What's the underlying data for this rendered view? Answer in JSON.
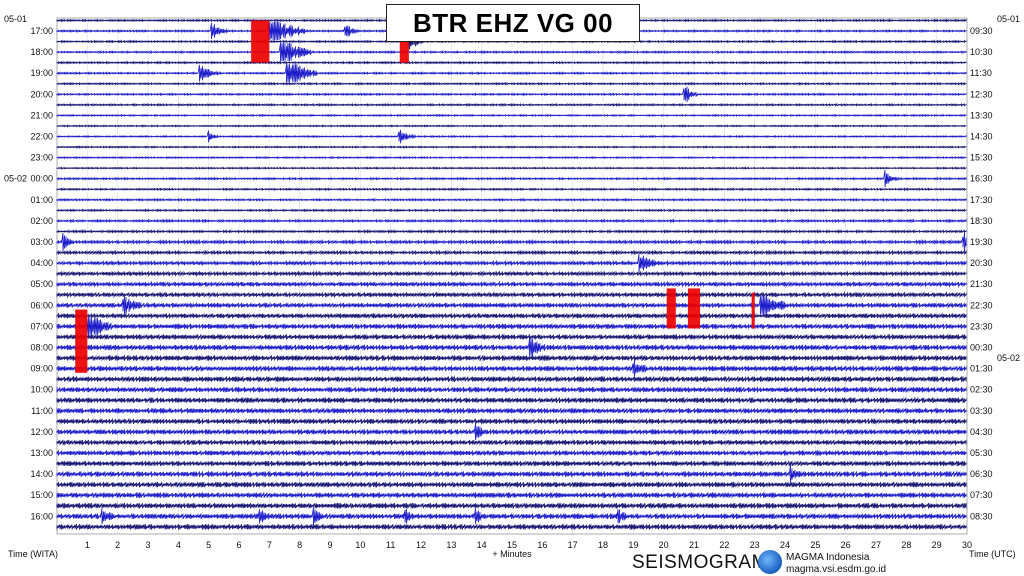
{
  "header": {
    "title": "BTR EHZ VG 00"
  },
  "footer": {
    "brand": "SEISMOGRAM",
    "org_name": "MAGMA Indonesia",
    "org_url": "magma.vsi.esdm.go.id"
  },
  "chart_data": {
    "type": "line",
    "title": "BTR EHZ VG 00",
    "xlabel": "+ Minutes",
    "ylabel_left": "Time (WITA)",
    "ylabel_right": "Time (UTC)",
    "xlim": [
      0,
      30
    ],
    "x_ticks": [
      1,
      2,
      3,
      4,
      5,
      6,
      7,
      8,
      9,
      10,
      11,
      12,
      13,
      14,
      15,
      16,
      17,
      18,
      19,
      20,
      21,
      22,
      23,
      24,
      25,
      26,
      27,
      28,
      29,
      30
    ],
    "lines_per_hour": 2,
    "date_labels_left": [
      {
        "text": "05-01",
        "at_hour_index": -0.5
      },
      {
        "text": "05-02",
        "at_hour_index": 7
      }
    ],
    "date_labels_right": [
      {
        "text": "05-01",
        "at_hour_index": -0.5
      },
      {
        "text": "05-02",
        "at_hour_index": 15.5
      }
    ],
    "left_hours": [
      "17:00",
      "18:00",
      "19:00",
      "20:00",
      "21:00",
      "22:00",
      "23:00",
      "00:00",
      "01:00",
      "02:00",
      "03:00",
      "04:00",
      "05:00",
      "06:00",
      "07:00",
      "08:00",
      "09:00",
      "10:00",
      "11:00",
      "12:00",
      "13:00",
      "14:00",
      "15:00",
      "16:00"
    ],
    "right_hours": [
      "09:30",
      "10:30",
      "11:30",
      "12:30",
      "13:30",
      "14:30",
      "15:30",
      "16:30",
      "17:30",
      "18:30",
      "19:30",
      "20:30",
      "21:30",
      "22:30",
      "23:30",
      "00:30",
      "01:30",
      "02:30",
      "03:30",
      "04:30",
      "05:30",
      "06:30",
      "07:30",
      "08:30"
    ],
    "trace_colors": [
      "#1818c8",
      "#101070"
    ],
    "clip_color": "#ee0000",
    "noise_level_by_hour": [
      0.25,
      0.25,
      0.25,
      0.25,
      0.2,
      0.2,
      0.2,
      0.25,
      0.25,
      0.3,
      0.4,
      0.5,
      0.6,
      0.65,
      0.7,
      0.75,
      0.75,
      0.75,
      0.7,
      0.7,
      0.7,
      0.75,
      0.75,
      0.75
    ],
    "events": [
      {
        "hour_index": 0.0,
        "minute": 5.1,
        "amplitude": 1.5,
        "duration": 0.5
      },
      {
        "hour_index": 0.0,
        "minute": 7.0,
        "amplitude": 3.0,
        "duration": 1.2
      },
      {
        "hour_index": 0.0,
        "minute": 9.5,
        "amplitude": 1.2,
        "duration": 0.4
      },
      {
        "hour_index": 0.5,
        "minute": 11.6,
        "amplitude": 1.5,
        "duration": 0.5
      },
      {
        "hour_index": 1.0,
        "minute": 7.4,
        "amplitude": 2.5,
        "duration": 1.0
      },
      {
        "hour_index": 2.0,
        "minute": 4.7,
        "amplitude": 1.5,
        "duration": 0.6
      },
      {
        "hour_index": 2.0,
        "minute": 7.6,
        "amplitude": 2.5,
        "duration": 1.0
      },
      {
        "hour_index": 3.0,
        "minute": 20.7,
        "amplitude": 1.5,
        "duration": 0.4
      },
      {
        "hour_index": 5.0,
        "minute": 5.0,
        "amplitude": 1.0,
        "duration": 0.3
      },
      {
        "hour_index": 5.0,
        "minute": 11.3,
        "amplitude": 1.0,
        "duration": 0.5
      },
      {
        "hour_index": 7.0,
        "minute": 27.3,
        "amplitude": 1.2,
        "duration": 0.4
      },
      {
        "hour_index": 10.0,
        "minute": 0.2,
        "amplitude": 1.5,
        "duration": 0.3
      },
      {
        "hour_index": 10.0,
        "minute": 29.9,
        "amplitude": 1.5,
        "duration": 0.2
      },
      {
        "hour_index": 11.0,
        "minute": 19.2,
        "amplitude": 1.5,
        "duration": 0.7
      },
      {
        "hour_index": 13.0,
        "minute": 2.2,
        "amplitude": 1.2,
        "duration": 0.6
      },
      {
        "hour_index": 13.0,
        "minute": 23.2,
        "amplitude": 2.5,
        "duration": 0.8
      },
      {
        "hour_index": 14.0,
        "minute": 1.0,
        "amplitude": 2.5,
        "duration": 0.8
      },
      {
        "hour_index": 15.0,
        "minute": 15.6,
        "amplitude": 1.5,
        "duration": 0.5
      },
      {
        "hour_index": 16.0,
        "minute": 19.0,
        "amplitude": 1.2,
        "duration": 0.5
      },
      {
        "hour_index": 19.0,
        "minute": 13.8,
        "amplitude": 1.2,
        "duration": 0.4
      },
      {
        "hour_index": 21.0,
        "minute": 24.2,
        "amplitude": 1.0,
        "duration": 0.4
      },
      {
        "hour_index": 23.0,
        "minute": 1.5,
        "amplitude": 1.0,
        "duration": 0.3
      },
      {
        "hour_index": 23.0,
        "minute": 6.7,
        "amplitude": 1.0,
        "duration": 0.3
      },
      {
        "hour_index": 23.0,
        "minute": 8.5,
        "amplitude": 1.0,
        "duration": 0.3
      },
      {
        "hour_index": 23.0,
        "minute": 11.5,
        "amplitude": 1.0,
        "duration": 0.3
      },
      {
        "hour_index": 23.0,
        "minute": 13.8,
        "amplitude": 1.0,
        "duration": 0.3
      },
      {
        "hour_index": 23.0,
        "minute": 18.5,
        "amplitude": 1.0,
        "duration": 0.3
      }
    ],
    "clip_blocks": [
      {
        "hour_from": -0.5,
        "hour_to": 1.5,
        "minute_from": 6.4,
        "minute_to": 7.0
      },
      {
        "hour_from": 0.0,
        "hour_to": 1.5,
        "minute_from": 11.3,
        "minute_to": 11.6
      },
      {
        "hour_from": 12.2,
        "hour_to": 14.1,
        "minute_from": 20.1,
        "minute_to": 20.4
      },
      {
        "hour_from": 12.2,
        "hour_to": 14.1,
        "minute_from": 20.8,
        "minute_to": 21.2
      },
      {
        "hour_from": 12.4,
        "hour_to": 14.1,
        "minute_from": 22.9,
        "minute_to": 23.0
      },
      {
        "hour_from": 13.2,
        "hour_to": 16.2,
        "minute_from": 0.6,
        "minute_to": 1.0
      }
    ]
  }
}
